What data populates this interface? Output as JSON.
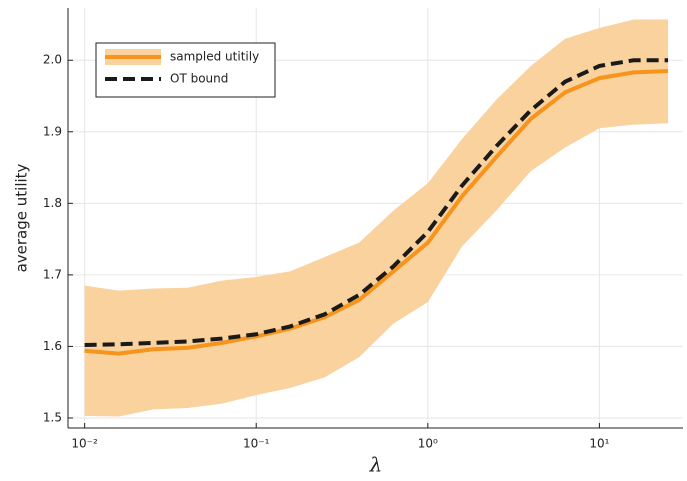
{
  "chart_data": {
    "type": "line",
    "xlabel": "λ",
    "ylabel": "average utility",
    "x": [
      0.01,
      0.0158,
      0.0251,
      0.0398,
      0.0631,
      0.1,
      0.158,
      0.251,
      0.398,
      0.631,
      1,
      1.585,
      2.512,
      3.981,
      6.31,
      10,
      15.85,
      25.12
    ],
    "series": [
      {
        "name": "sampled utitily",
        "color": "#f7941d",
        "band_color": "#f9d29d",
        "values": [
          1.594,
          1.59,
          1.596,
          1.598,
          1.605,
          1.614,
          1.625,
          1.641,
          1.665,
          1.705,
          1.745,
          1.81,
          1.865,
          1.918,
          1.955,
          1.975,
          1.983,
          1.985
        ],
        "upper": [
          1.685,
          1.678,
          1.681,
          1.682,
          1.692,
          1.697,
          1.705,
          1.725,
          1.745,
          1.79,
          1.828,
          1.89,
          1.945,
          1.992,
          2.03,
          2.045,
          2.057,
          2.057
        ],
        "lower": [
          1.503,
          1.502,
          1.512,
          1.514,
          1.52,
          1.532,
          1.542,
          1.557,
          1.585,
          1.632,
          1.662,
          1.74,
          1.79,
          1.845,
          1.878,
          1.905,
          1.91,
          1.912
        ]
      },
      {
        "name": "OT bound",
        "color": "#1a1a1a",
        "dash": true,
        "values": [
          1.602,
          1.603,
          1.605,
          1.607,
          1.611,
          1.617,
          1.628,
          1.645,
          1.672,
          1.712,
          1.76,
          1.825,
          1.88,
          1.93,
          1.97,
          1.992,
          2.0,
          2.0
        ]
      }
    ],
    "xscale": "log",
    "xlim": [
      0.008,
      30.7
    ],
    "xticks": [
      {
        "value": 0.01,
        "label": "10⁻²"
      },
      {
        "value": 0.1,
        "label": "10⁻¹"
      },
      {
        "value": 1,
        "label": "10⁰"
      },
      {
        "value": 10,
        "label": "10¹"
      }
    ],
    "ylim": [
      1.486,
      2.073
    ],
    "yticks": [
      1.5,
      1.6,
      1.7,
      1.8,
      1.9,
      {
        "value": 2,
        "label": "2.0"
      }
    ],
    "grid": true,
    "legend": "upper-left"
  }
}
